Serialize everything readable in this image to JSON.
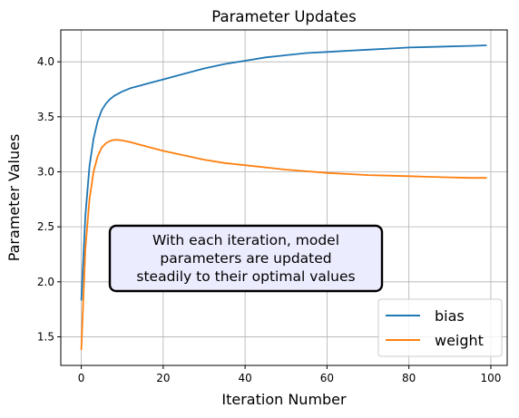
{
  "chart_data": {
    "type": "line",
    "title": "Parameter Updates",
    "xlabel": "Iteration Number",
    "ylabel": "Parameter Values",
    "xlim": [
      -5,
      104
    ],
    "ylim": [
      1.24,
      4.29
    ],
    "xticks": [
      0,
      20,
      40,
      60,
      80,
      100
    ],
    "yticks": [
      1.5,
      2.0,
      2.5,
      3.0,
      3.5,
      4.0
    ],
    "xtick_labels": [
      "0",
      "20",
      "40",
      "60",
      "80",
      "100"
    ],
    "ytick_labels": [
      "1.5",
      "2.0",
      "2.5",
      "3.0",
      "3.5",
      "4.0"
    ],
    "grid": true,
    "legend_position": "lower-right",
    "annotation": {
      "lines": [
        "With each iteration, model",
        "parameters are updated",
        "steadily to their optimal values"
      ],
      "facecolor": "#ececff",
      "edgecolor": "#000000"
    },
    "series": [
      {
        "name": "bias",
        "color": "#1f77b4",
        "x": [
          0,
          1,
          2,
          3,
          4,
          5,
          6,
          7,
          8,
          9,
          10,
          12,
          14,
          16,
          18,
          20,
          25,
          30,
          35,
          40,
          45,
          50,
          55,
          60,
          65,
          70,
          75,
          80,
          85,
          90,
          95,
          99
        ],
        "y": [
          1.83,
          2.6,
          3.05,
          3.3,
          3.46,
          3.56,
          3.62,
          3.66,
          3.69,
          3.71,
          3.73,
          3.76,
          3.78,
          3.8,
          3.82,
          3.84,
          3.89,
          3.94,
          3.98,
          4.01,
          4.04,
          4.06,
          4.08,
          4.09,
          4.1,
          4.11,
          4.12,
          4.13,
          4.135,
          4.14,
          4.145,
          4.15
        ]
      },
      {
        "name": "weight",
        "color": "#ff7f0e",
        "x": [
          0,
          1,
          2,
          3,
          4,
          5,
          6,
          7,
          8,
          9,
          10,
          12,
          14,
          16,
          18,
          20,
          25,
          30,
          35,
          40,
          45,
          50,
          55,
          60,
          65,
          70,
          75,
          80,
          85,
          90,
          95,
          99
        ],
        "y": [
          1.38,
          2.3,
          2.75,
          3.0,
          3.14,
          3.22,
          3.26,
          3.28,
          3.29,
          3.29,
          3.285,
          3.27,
          3.25,
          3.23,
          3.21,
          3.19,
          3.15,
          3.11,
          3.08,
          3.06,
          3.04,
          3.02,
          3.005,
          2.99,
          2.98,
          2.97,
          2.965,
          2.96,
          2.955,
          2.95,
          2.945,
          2.945
        ]
      }
    ]
  }
}
